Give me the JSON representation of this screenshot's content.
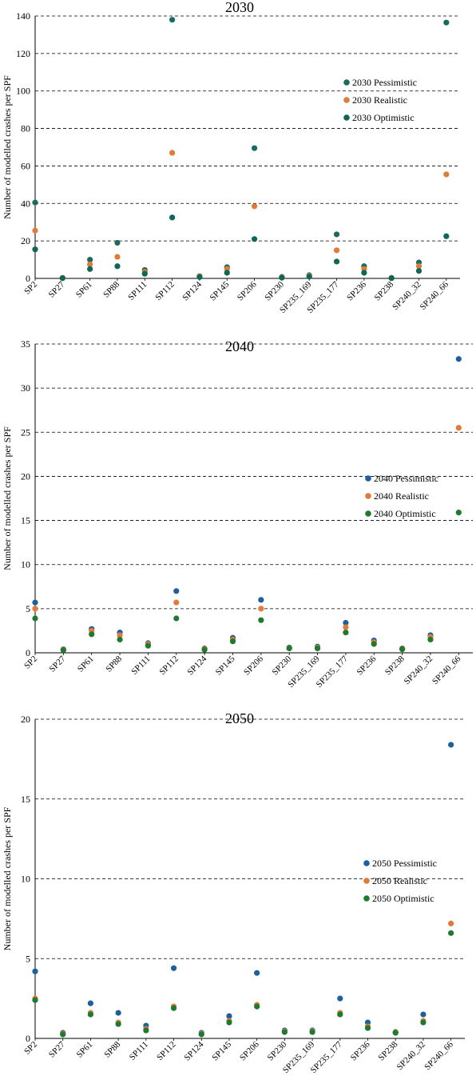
{
  "categories": [
    "SP2",
    "SP27",
    "SP61",
    "SP88",
    "SP111",
    "SP112",
    "SP124",
    "SP145",
    "SP206",
    "SP230",
    "SP235_169",
    "SP235_177",
    "SP236",
    "SP238",
    "SP240_32",
    "SP240_66"
  ],
  "chart_data": [
    {
      "type": "scatter",
      "title": "2030",
      "ylabel": "Number of modelled crashes per SPF",
      "xlabel": "",
      "ylim": [
        0,
        140
      ],
      "yticks": [
        0,
        20,
        40,
        60,
        80,
        100,
        120,
        140
      ],
      "grid": "horizontal dashed",
      "legend_position": "right-middle",
      "categories": [
        "SP2",
        "SP27",
        "SP61",
        "SP88",
        "SP111",
        "SP112",
        "SP124",
        "SP145",
        "SP206",
        "SP230",
        "SP235_169",
        "SP235_177",
        "SP236",
        "SP238",
        "SP240_32",
        "SP240_66"
      ],
      "series": [
        {
          "name": "2030 Pessimistic",
          "color": "#1a6b5e",
          "values": [
            40.5,
            0.3,
            10,
            19,
            4.5,
            138,
            1.2,
            6,
            69.5,
            0.8,
            1.7,
            23.5,
            6.5,
            0.3,
            8.5,
            136.5
          ]
        },
        {
          "name": "2030 Realistic",
          "color": "#e07b39",
          "values": [
            25.5,
            0.2,
            7.5,
            11.5,
            3.5,
            67,
            1,
            5,
            38.5,
            0.6,
            1.3,
            15,
            5,
            0.2,
            6.5,
            55.5
          ]
        },
        {
          "name": "2030 Optimistic",
          "color": "#0e6655",
          "values": [
            15.5,
            0.1,
            5,
            6.5,
            2.5,
            32.5,
            0.7,
            3,
            21,
            0.4,
            0.9,
            9,
            3,
            0.1,
            4,
            22.5
          ]
        }
      ]
    },
    {
      "type": "scatter",
      "title": "2040",
      "ylabel": "Number of modelled crashes per SPF",
      "xlabel": "",
      "ylim": [
        0,
        35
      ],
      "yticks": [
        0,
        5,
        10,
        15,
        20,
        25,
        30,
        35
      ],
      "grid": "horizontal dashed",
      "legend_position": "right-middle",
      "categories": [
        "SP2",
        "SP27",
        "SP61",
        "SP88",
        "SP111",
        "SP112",
        "SP124",
        "SP145",
        "SP206",
        "SP230",
        "SP235_169",
        "SP235_177",
        "SP236",
        "SP238",
        "SP240_32",
        "SP240_66"
      ],
      "series": [
        {
          "name": "2040 Pessimistic",
          "color": "#1f5f9e",
          "values": [
            5.7,
            0.4,
            2.7,
            2.3,
            1.1,
            7,
            0.5,
            1.7,
            6,
            0.6,
            0.7,
            3.4,
            1.4,
            0.5,
            2,
            33.3
          ]
        },
        {
          "name": "2040 Realistic",
          "color": "#e07b39",
          "values": [
            5,
            0.35,
            2.5,
            2,
            1,
            5.7,
            0.45,
            1.5,
            5,
            0.55,
            0.6,
            2.9,
            1.2,
            0.45,
            1.8,
            25.5
          ]
        },
        {
          "name": "2040 Optimistic",
          "color": "#1e7a2e",
          "values": [
            3.9,
            0.3,
            2.1,
            1.5,
            0.8,
            3.9,
            0.35,
            1.3,
            3.7,
            0.5,
            0.5,
            2.3,
            1,
            0.4,
            1.5,
            15.9
          ]
        }
      ]
    },
    {
      "type": "scatter",
      "title": "2050",
      "ylabel": "Number of modelled crashes per SPF",
      "xlabel": "",
      "ylim": [
        0,
        20
      ],
      "yticks": [
        0,
        5,
        10,
        15,
        20
      ],
      "grid": "horizontal dashed",
      "legend_position": "right-middle",
      "categories": [
        "SP2",
        "SP27",
        "SP61",
        "SP88",
        "SP111",
        "SP112",
        "SP124",
        "SP145",
        "SP206",
        "SP230",
        "SP235_169",
        "SP235_177",
        "SP236",
        "SP238",
        "SP240_32",
        "SP240_66"
      ],
      "series": [
        {
          "name": "2050 Pessimistic",
          "color": "#1f5f9e",
          "values": [
            4.2,
            0.35,
            2.2,
            1.6,
            0.8,
            4.4,
            0.35,
            1.4,
            4.1,
            0.5,
            0.5,
            2.5,
            1,
            0.4,
            1.5,
            18.4
          ]
        },
        {
          "name": "2050 Realistic",
          "color": "#e07b39",
          "values": [
            2.5,
            0.3,
            1.6,
            1,
            0.6,
            2,
            0.3,
            1.1,
            2.1,
            0.45,
            0.45,
            1.6,
            0.75,
            0.38,
            1.1,
            7.2
          ]
        },
        {
          "name": "2050 Optimistic",
          "color": "#1e7a2e",
          "values": [
            2.4,
            0.25,
            1.5,
            0.9,
            0.5,
            1.9,
            0.25,
            1,
            2,
            0.4,
            0.4,
            1.5,
            0.65,
            0.35,
            1,
            6.6
          ]
        }
      ]
    }
  ]
}
